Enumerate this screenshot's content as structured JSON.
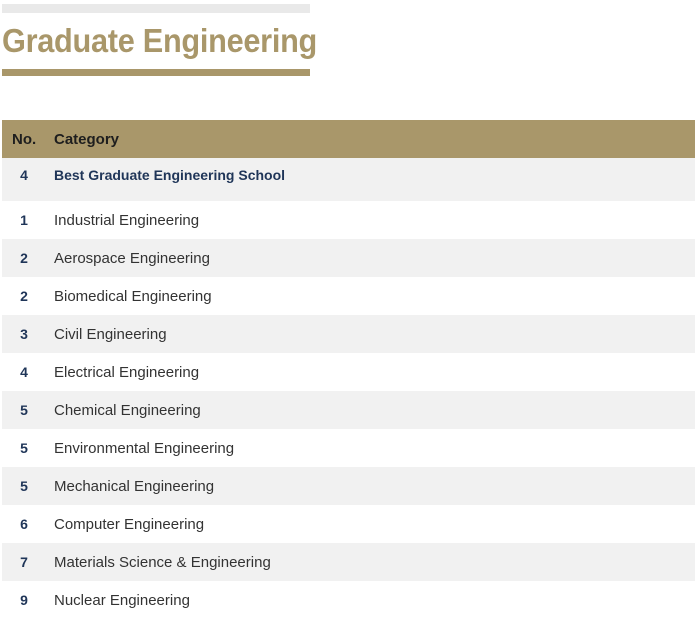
{
  "title": "Graduate Engineering",
  "table": {
    "headers": {
      "no": "No.",
      "category": "Category"
    },
    "featured": {
      "no": "4",
      "category": "Best Graduate Engineering School"
    },
    "rows": [
      {
        "no": "1",
        "category": "Industrial Engineering"
      },
      {
        "no": "2",
        "category": "Aerospace Engineering"
      },
      {
        "no": "2",
        "category": "Biomedical Engineering"
      },
      {
        "no": "3",
        "category": "Civil Engineering"
      },
      {
        "no": "4",
        "category": "Electrical Engineering"
      },
      {
        "no": "5",
        "category": "Chemical Engineering"
      },
      {
        "no": "5",
        "category": "Environmental Engineering"
      },
      {
        "no": "5",
        "category": "Mechanical Engineering"
      },
      {
        "no": "6",
        "category": "Computer Engineering"
      },
      {
        "no": "7",
        "category": "Materials Science & Engineering"
      },
      {
        "no": "9",
        "category": "Nuclear Engineering"
      }
    ]
  },
  "colors": {
    "accent_gold": "#a9976a",
    "rank_navy": "#1f3558",
    "stripe_gray": "#f1f1f1"
  }
}
